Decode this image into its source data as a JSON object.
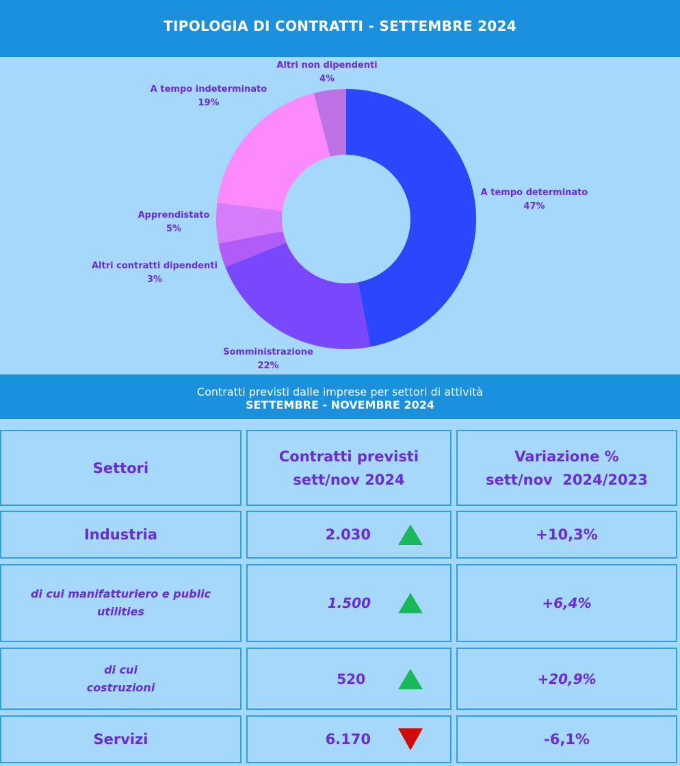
{
  "header": {
    "title": "TIPOLOGIA DI CONTRATTI - SETTEMBRE 2024"
  },
  "chart_data": {
    "type": "pie",
    "variant": "donut",
    "slices": [
      {
        "name": "A tempo determinato",
        "value": 47,
        "label": "47%",
        "color": "#2c46fd"
      },
      {
        "name": "Somministrazione",
        "value": 22,
        "label": "22%",
        "color": "#7a48fc"
      },
      {
        "name": "Altri contratti dipendenti",
        "value": 3,
        "label": "3%",
        "color": "#b25cf8"
      },
      {
        "name": "Apprendistato",
        "value": 5,
        "label": "5%",
        "color": "#d67cfb"
      },
      {
        "name": "A tempo indeterminato",
        "value": 19,
        "label": "19%",
        "color": "#fd8afd"
      },
      {
        "name": "Altri non dipendenti",
        "value": 4,
        "label": "4%",
        "color": "#bd72e6"
      }
    ]
  },
  "subheader": {
    "line1": "Contratti previsti dalle imprese per settori di attività",
    "line2": "SETTEMBRE - NOVEMBRE 2024"
  },
  "table": {
    "col1": "Settori",
    "col2": [
      "Contratti previsti",
      "sett/nov 2024"
    ],
    "col3": [
      "Variazione %",
      "sett/nov  2024/2023"
    ],
    "rows": [
      {
        "sector": [
          "Industria"
        ],
        "value": "2.030",
        "trend": "up",
        "change": "+10,3%"
      },
      {
        "sector": [
          "di cui manifatturiero e public",
          "utilities"
        ],
        "value": "1.500",
        "trend": "up",
        "change": "+6,4%"
      },
      {
        "sector": [
          "di cui",
          "costruzioni"
        ],
        "value": "520",
        "trend": "up",
        "change": "+20,9%"
      },
      {
        "sector": [
          "Servizi"
        ],
        "value": "6.170",
        "trend": "down",
        "change": "-6,1%"
      }
    ]
  },
  "colors": {
    "up": "#19b85a",
    "down": "#d10a0a",
    "text": "#6a2bd8",
    "banner": "#1b90dd"
  }
}
